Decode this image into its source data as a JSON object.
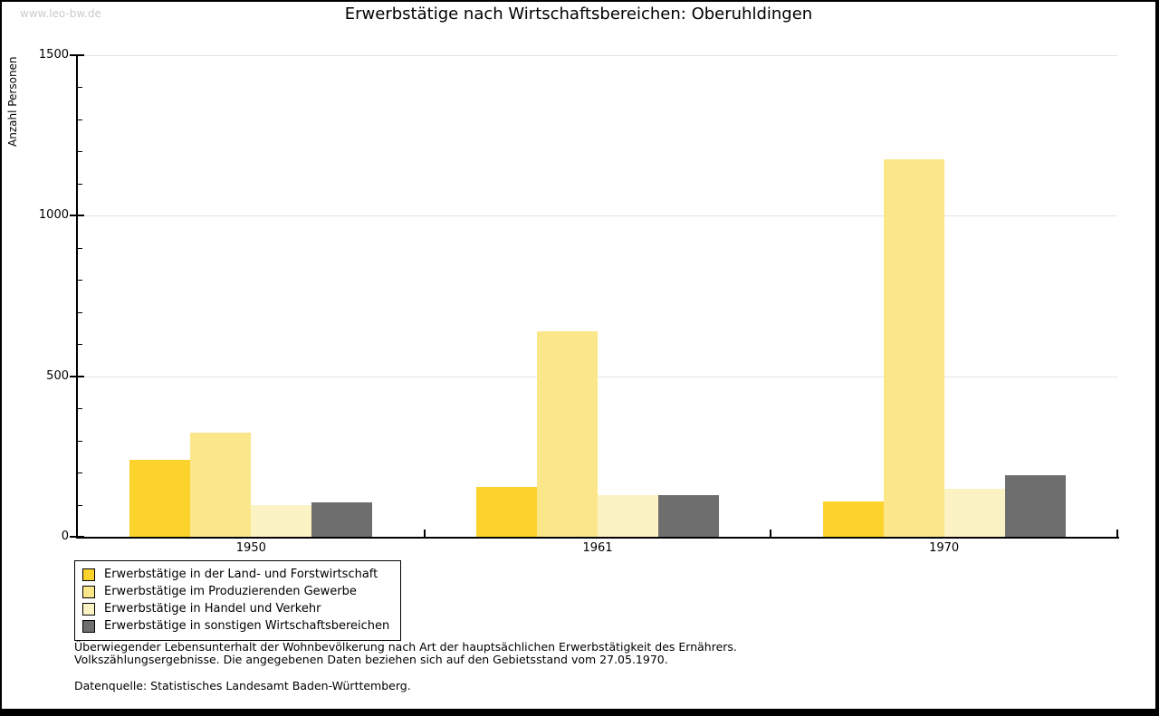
{
  "watermark": "www.leo-bw.de",
  "title": "Erwerbstätige nach Wirtschaftsbereichen: Oberuhldingen",
  "chart_data": {
    "type": "bar",
    "title": "Erwerbstätige nach Wirtschaftsbereichen: Oberuhldingen",
    "xlabel": "",
    "ylabel": "Anzahl Personen",
    "categories": [
      "1950",
      "1961",
      "1970"
    ],
    "series": [
      {
        "name": "Erwerbstätige in der Land- und Forstwirtschaft",
        "color": "#FCD22D",
        "values": [
          240,
          155,
          110
        ]
      },
      {
        "name": "Erwerbstätige im Produzierenden Gewerbe",
        "color": "#FBE78A",
        "values": [
          325,
          640,
          1175
        ]
      },
      {
        "name": "Erwerbstätige in Handel und Verkehr",
        "color": "#FCF3C5",
        "values": [
          100,
          130,
          150
        ]
      },
      {
        "name": "Erwerbstätige in sonstigen Wirtschaftsbereichen",
        "color": "#6E6E6E",
        "values": [
          107,
          130,
          192
        ]
      }
    ],
    "ylim": [
      0,
      1500
    ],
    "yticks": [
      0,
      500,
      1000,
      1500
    ],
    "minor_tick_step": 100,
    "grid": true,
    "gridline_color": "#e4e4e4",
    "legend_position": "bottom-left"
  },
  "footer": {
    "note_line1": "Überwiegender Lebensunterhalt der Wohnbevölkerung nach Art der hauptsächlichen Erwerbstätigkeit des Ernährers.",
    "note_line2": "Volkszählungsergebnisse. Die angegebenen Daten beziehen sich auf den Gebietsstand vom 27.05.1970.",
    "source": "Datenquelle: Statistisches Landesamt Baden-Württemberg."
  }
}
